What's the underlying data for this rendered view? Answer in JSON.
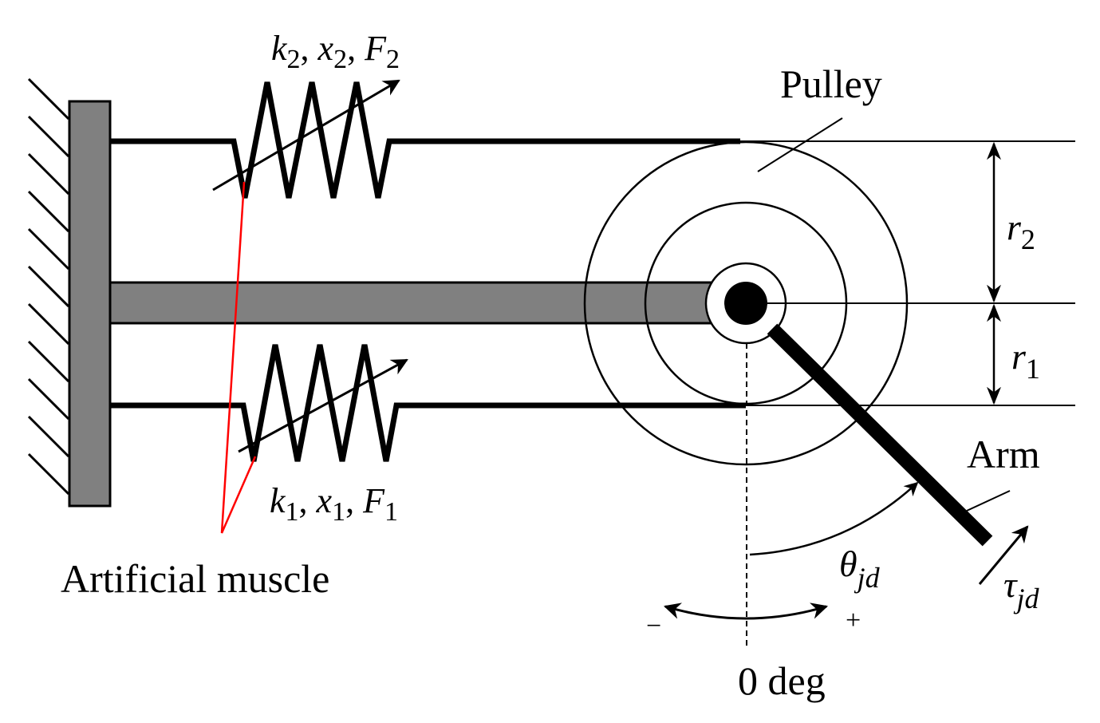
{
  "labels": {
    "spring_top": {
      "k": "k",
      "k_sub": "2",
      "x": "x",
      "x_sub": "2",
      "F": "F",
      "F_sub": "2",
      "sep": ","
    },
    "spring_bottom": {
      "k": "k",
      "k_sub": "1",
      "x": "x",
      "x_sub": "1",
      "F": "F",
      "F_sub": "1",
      "sep": ","
    },
    "pulley": "Pulley",
    "arm": "Arm",
    "artificial_muscle": "Artificial muscle",
    "r2": {
      "main": "r",
      "sub": "2"
    },
    "r1": {
      "main": "r",
      "sub": "1"
    },
    "theta": {
      "main": "θ",
      "sub": "jd"
    },
    "tau": {
      "main": "τ",
      "sub": "jd"
    },
    "minus": "−",
    "plus": "+",
    "zero_deg": "0 deg"
  },
  "colors": {
    "line": "#000000",
    "rod_fill": "#808080",
    "muscle_pointer": "#ff0000"
  }
}
